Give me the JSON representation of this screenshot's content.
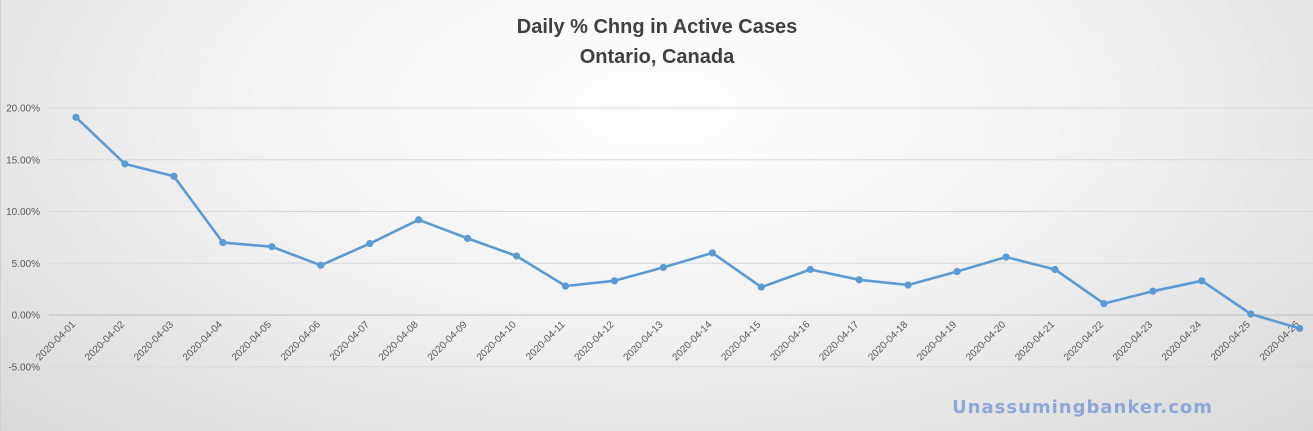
{
  "chart_data": {
    "type": "line",
    "title": "Daily % Chng in Active Cases",
    "subtitle": "Ontario, Canada",
    "xlabel": "",
    "ylabel": "",
    "ylim": [
      -5,
      20
    ],
    "yticks": [
      "-5.00%",
      "0.00%",
      "5.00%",
      "10.00%",
      "15.00%",
      "20.00%"
    ],
    "ytick_values": [
      -5,
      0,
      5,
      10,
      15,
      20
    ],
    "grid": true,
    "legend": "none",
    "categories": [
      "2020-04-01",
      "2020-04-02",
      "2020-04-03",
      "2020-04-04",
      "2020-04-05",
      "2020-04-06",
      "2020-04-07",
      "2020-04-08",
      "2020-04-09",
      "2020-04-10",
      "2020-04-11",
      "2020-04-12",
      "2020-04-13",
      "2020-04-14",
      "2020-04-15",
      "2020-04-16",
      "2020-04-17",
      "2020-04-18",
      "2020-04-19",
      "2020-04-20",
      "2020-04-21",
      "2020-04-22",
      "2020-04-23",
      "2020-04-24",
      "2020-04-25",
      "2020-04-26"
    ],
    "series": [
      {
        "values": [
          19.1,
          14.6,
          13.4,
          7.0,
          6.6,
          4.8,
          6.9,
          9.2,
          7.4,
          5.7,
          2.8,
          3.3,
          4.6,
          6.0,
          2.7,
          4.4,
          3.4,
          2.9,
          4.2,
          5.6,
          4.4,
          1.1,
          2.3,
          3.3,
          0.1,
          -1.3
        ]
      }
    ],
    "line_color": "#5b9bd5"
  },
  "watermark": "Unassumingbanker.com"
}
